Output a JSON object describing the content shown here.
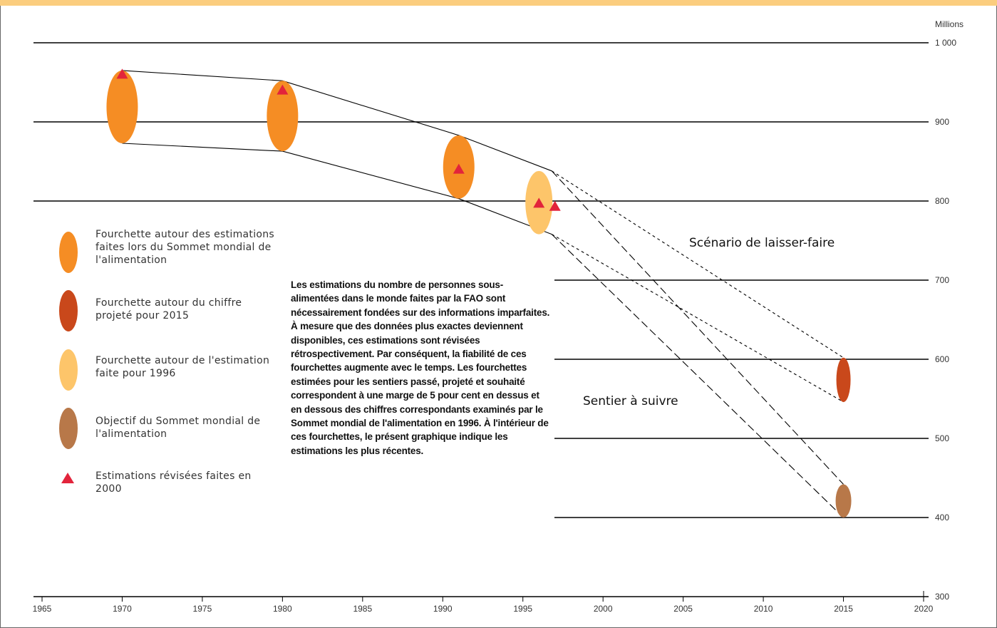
{
  "colors": {
    "top_bar": "#fbcd7e",
    "range_1996_summit": "#f58d24",
    "range_2015_projection": "#c9481b",
    "range_1996_estimate": "#fdc56a",
    "summit_target": "#b87849",
    "revised_2000": "#e2243b",
    "line": "#000000"
  },
  "chart_data": {
    "type": "scatter",
    "title": "",
    "xlabel": "",
    "ylabel": "Millions",
    "xlim": [
      1965,
      2020
    ],
    "ylim": [
      300,
      1000
    ],
    "x_ticks": [
      "1965",
      "1970",
      "1975",
      "1980",
      "1985",
      "1990",
      "1995",
      "2000",
      "2005",
      "2010",
      "2015",
      "2020"
    ],
    "y_ticks": [
      "300",
      "400",
      "500",
      "600",
      "700",
      "800",
      "900",
      "1 000"
    ],
    "y_gridlines": [
      400,
      500,
      600,
      700,
      800,
      900,
      1000
    ],
    "ranges": [
      {
        "type": "summit_range",
        "x": 1970,
        "low": 873,
        "high": 965
      },
      {
        "type": "summit_range",
        "x": 1980,
        "low": 863,
        "high": 952
      },
      {
        "type": "summit_range",
        "x": 1991,
        "low": 803,
        "high": 883
      },
      {
        "type": "estimate_1996_range",
        "x": 1996,
        "low": 758,
        "high": 838
      },
      {
        "type": "projection_2015_range",
        "x": 2015,
        "low": 546,
        "high": 602
      },
      {
        "type": "target_range",
        "x": 2015,
        "low": 400,
        "high": 442
      }
    ],
    "revised_estimates_2000": [
      {
        "x": 1970,
        "y": 960
      },
      {
        "x": 1980,
        "y": 940
      },
      {
        "x": 1991,
        "y": 840
      },
      {
        "x": 1996,
        "y": 797
      },
      {
        "x": 1997,
        "y": 793
      }
    ],
    "envelope_upper": [
      [
        1970,
        965
      ],
      [
        1980,
        952
      ],
      [
        1991,
        883
      ],
      [
        1996.8,
        838
      ]
    ],
    "envelope_lower": [
      [
        1970,
        873
      ],
      [
        1980,
        863
      ],
      [
        1991,
        803
      ],
      [
        1996.8,
        758
      ]
    ],
    "laisser_faire_paths": [
      [
        [
          1996.8,
          838
        ],
        [
          2015,
          602
        ]
      ],
      [
        [
          1996.8,
          758
        ],
        [
          2015,
          546
        ]
      ]
    ],
    "target_paths": [
      [
        [
          1996.8,
          838
        ],
        [
          2015,
          442
        ]
      ],
      [
        [
          1996.8,
          758
        ],
        [
          2015,
          400
        ]
      ]
    ],
    "annotations": {
      "scenario_label": "Scénario de laisser-faire",
      "path_label": "Sentier à suivre"
    }
  },
  "legend": [
    {
      "symbol": "orange-ellipse",
      "label": "Fourchette autour des estimations faites lors du Sommet mondial de l'alimentation"
    },
    {
      "symbol": "dark-orange-ellipse",
      "label": "Fourchette autour du chiffre projeté pour 2015"
    },
    {
      "symbol": "light-orange-ellipse",
      "label": "Fourchette autour de l'estimation faite pour 1996"
    },
    {
      "symbol": "brown-ellipse",
      "label": "Objectif du Sommet mondial de l'alimentation"
    },
    {
      "symbol": "red-triangle",
      "label": "Estimations révisées faites en 2000"
    }
  ],
  "note": "Les estimations du nombre de personnes sous-alimentées dans le monde faites par la FAO sont nécessairement fondées sur des informations imparfaites. À mesure que des données plus exactes deviennent disponibles, ces estimations sont révisées rétrospectivement. Par conséquent, la fiabilité de ces fourchettes augmente avec le temps. Les fourchettes estimées pour les sentiers passé, projeté et souhaité correspondent à une marge de 5 pour cent en dessus et en dessous des chiffres correspondants examinés par le Sommet mondial de l'alimentation en 1996. À l'intérieur de ces fourchettes, le présent graphique indique les estimations les plus récentes."
}
